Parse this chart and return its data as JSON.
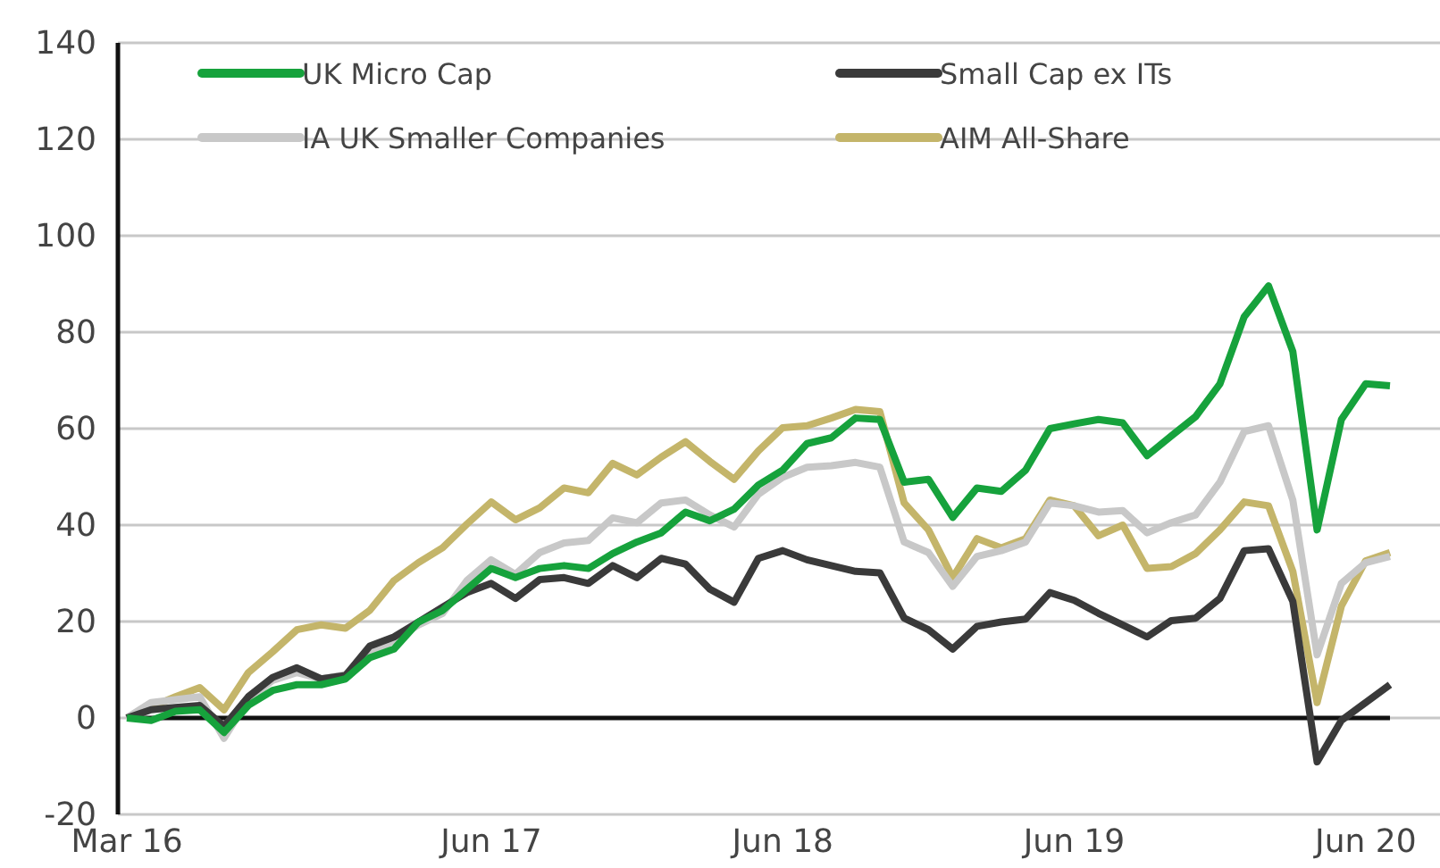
{
  "chart_data": {
    "type": "line",
    "categories": [
      "Mar 16",
      null,
      null,
      null,
      null,
      null,
      null,
      null,
      null,
      null,
      null,
      null,
      null,
      null,
      null,
      "Jun 17",
      null,
      null,
      null,
      null,
      null,
      null,
      null,
      null,
      null,
      null,
      null,
      "Jun 18",
      null,
      null,
      null,
      null,
      null,
      null,
      null,
      null,
      null,
      null,
      null,
      "Jun 19",
      null,
      null,
      null,
      null,
      null,
      null,
      null,
      null,
      null,
      null,
      null,
      "Jun 20",
      null
    ],
    "series": [
      {
        "name": "UK Micro Cap",
        "color": "#16a23c",
        "values": [
          0,
          -0.5,
          1.4,
          1.7,
          -3,
          2.6,
          5.7,
          6.9,
          6.9,
          8.1,
          12.5,
          14.3,
          19.9,
          22.3,
          26.7,
          31,
          29.1,
          31,
          31.6,
          31,
          34.1,
          36.5,
          38.4,
          42.7,
          40.9,
          43.3,
          48.3,
          51.4,
          56.9,
          58.1,
          62.2,
          61.9,
          48.9,
          49.5,
          41.6,
          47.7,
          47,
          51.4,
          60,
          61,
          61.9,
          61.2,
          54.4,
          58.5,
          62.5,
          69.3,
          83.2,
          89.6,
          76,
          39,
          61.9,
          69.3,
          68.9
        ]
      },
      {
        "name": "Small Cap ex ITs",
        "color": "#3a3a3a",
        "values": [
          0,
          1.7,
          2.2,
          2.6,
          -1.7,
          4.4,
          8.4,
          10.4,
          8.1,
          8.8,
          14.9,
          16.8,
          19.9,
          23,
          26,
          27.9,
          24.8,
          28.7,
          29.1,
          27.9,
          31.6,
          29.1,
          33.1,
          31.9,
          26.7,
          24,
          33.1,
          34.7,
          32.8,
          31.6,
          30.4,
          30.1,
          20.7,
          18.3,
          14.3,
          19,
          19.9,
          20.5,
          26,
          24.4,
          21.7,
          19.3,
          16.8,
          20.2,
          20.7,
          24.8,
          34.7,
          35.1,
          24.2,
          -9.1,
          -0.5,
          3.2,
          6.9
        ]
      },
      {
        "name": "IA UK Smaller Companies",
        "color": "#c8c8c8",
        "values": [
          0,
          3.2,
          3.8,
          4.4,
          -4.2,
          3.8,
          7.8,
          9.4,
          8.1,
          9,
          13.1,
          16.2,
          19.3,
          21.7,
          28.5,
          32.8,
          29.8,
          34.3,
          36.3,
          36.8,
          41.5,
          40.5,
          44.6,
          45.2,
          42.1,
          39.6,
          46.4,
          49.9,
          52,
          52.3,
          53,
          52,
          36.5,
          34.3,
          27.3,
          33.5,
          34.7,
          36.5,
          44.6,
          44,
          42.7,
          43,
          38.4,
          40.5,
          42.1,
          48.9,
          59.4,
          60.6,
          45.2,
          13.1,
          27.9,
          32.2,
          33.5
        ]
      },
      {
        "name": "AIM All-Share",
        "color": "#c4b56a",
        "values": [
          0,
          2.3,
          4.4,
          6.3,
          1.7,
          9.4,
          13.7,
          18.3,
          19.3,
          18.6,
          22.3,
          28.5,
          32.2,
          35.3,
          40.2,
          44.8,
          41.1,
          43.6,
          47.7,
          46.7,
          52.8,
          50.4,
          54.1,
          57.3,
          53.2,
          49.5,
          55.4,
          60.2,
          60.6,
          62.2,
          64,
          63.5,
          44.6,
          39,
          29.1,
          37.2,
          35.3,
          37.2,
          45.2,
          44,
          37.8,
          40,
          31,
          31.4,
          34.1,
          39,
          44.8,
          44,
          30.4,
          3.2,
          23.2,
          32.6,
          34.3
        ]
      }
    ],
    "ylim": [
      -20,
      140
    ],
    "yticks": [
      -20,
      0,
      20,
      40,
      60,
      80,
      100,
      120,
      140
    ],
    "grid": "y",
    "legend": "top",
    "marker": "none",
    "line_style": "solid"
  }
}
